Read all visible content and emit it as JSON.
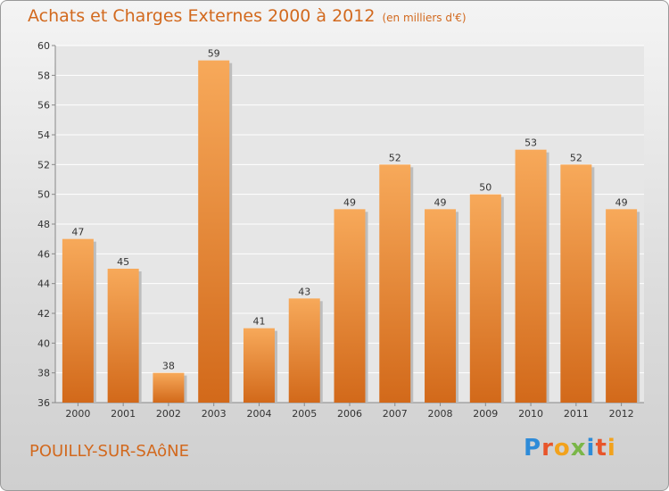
{
  "title": "Achats et Charges Externes 2000 à 2012",
  "unit": "(en milliers d'€)",
  "place_name": "POUILLY-SUR-SAôNE",
  "logo": {
    "text": "Proxiti",
    "letters": [
      "P",
      "r",
      "o",
      "x",
      "i",
      "t",
      "i"
    ],
    "colors": [
      "#2e8bd8",
      "#e8552a",
      "#f2a21c",
      "#7ab648",
      "#2e8bd8",
      "#e8552a",
      "#f2a21c"
    ]
  },
  "colors": {
    "accent": "#d2691e",
    "bar_light": "#f5a552",
    "bar_dark": "#d56d18"
  },
  "chart_data": {
    "type": "bar",
    "categories": [
      "2000",
      "2001",
      "2002",
      "2003",
      "2004",
      "2005",
      "2006",
      "2007",
      "2008",
      "2009",
      "2010",
      "2011",
      "2012"
    ],
    "values": [
      47,
      45,
      38,
      59,
      41,
      43,
      49,
      52,
      49,
      50,
      53,
      52,
      49
    ],
    "ylim": [
      36,
      60
    ],
    "yticks": [
      36,
      38,
      40,
      42,
      44,
      46,
      48,
      50,
      52,
      54,
      56,
      58,
      60
    ],
    "grid": true,
    "data_labels": true
  }
}
